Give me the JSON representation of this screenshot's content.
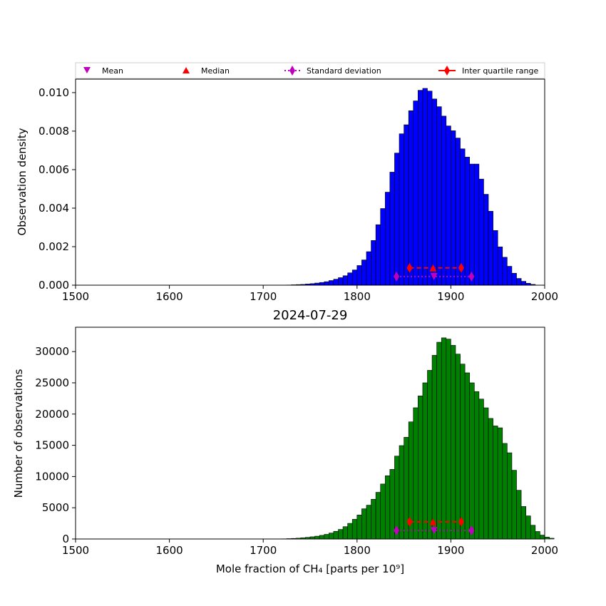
{
  "figure": {
    "title_bottom": "2024-07-29",
    "legend": {
      "placement": "top, above upper panel",
      "entries": [
        {
          "label": "Mean",
          "marker": "triangle-down",
          "color": "#bf00bf"
        },
        {
          "label": "Median",
          "marker": "triangle-up",
          "color": "#ff0000"
        },
        {
          "label": "Standard deviation",
          "marker": "diamond",
          "line": "dotted",
          "color": "#bf00bf"
        },
        {
          "label": "Inter quartile range",
          "marker": "diamond",
          "line": "solid",
          "color": "#ff0000"
        }
      ]
    },
    "colors": {
      "density": "#0000ff",
      "counts": "#008000",
      "mean": "#bf00bf",
      "median": "#ff0000",
      "stddev": "#bf00bf",
      "iqr": "#ff0000"
    }
  },
  "chart_data": [
    {
      "type": "bar",
      "panel": "top",
      "title": "",
      "xlabel": "",
      "ylabel": "Observation density",
      "xlim": [
        1500,
        2000
      ],
      "ylim": [
        0,
        0.0107
      ],
      "xticks": [
        "1500",
        "1600",
        "1700",
        "1800",
        "1900",
        "2000"
      ],
      "yticks": [
        "0.000",
        "0.002",
        "0.004",
        "0.006",
        "0.008",
        "0.010"
      ],
      "bin_start": 1725,
      "bin_width": 5,
      "values": [
        1e-05,
        2e-05,
        3e-05,
        4e-05,
        6e-05,
        8e-05,
        0.00011,
        0.00014,
        0.00018,
        0.00024,
        0.00031,
        0.00039,
        0.00049,
        0.00064,
        0.00079,
        0.00102,
        0.00131,
        0.00174,
        0.00232,
        0.00314,
        0.00398,
        0.00483,
        0.00587,
        0.00686,
        0.00786,
        0.00833,
        0.00906,
        0.00957,
        0.01012,
        0.01022,
        0.01008,
        0.00967,
        0.00927,
        0.00878,
        0.00827,
        0.00802,
        0.00764,
        0.00708,
        0.00665,
        0.00629,
        0.00629,
        0.00551,
        0.00472,
        0.00384,
        0.00284,
        0.00199,
        0.00145,
        0.00098,
        0.00062,
        0.00035,
        0.0002,
        0.0001,
        4e-05
      ],
      "markers": {
        "mean": {
          "x": 1882,
          "y": 0.00045
        },
        "median": {
          "x": 1881,
          "y": 0.0009
        },
        "stddev": {
          "x_from": 1842,
          "x_to": 1922,
          "y": 0.00045
        },
        "iqr": {
          "x_from": 1856,
          "x_to": 1911,
          "y": 0.0009
        }
      }
    },
    {
      "type": "bar",
      "panel": "bottom",
      "title": "2024-07-29",
      "xlabel": "Mole fraction of CH₄ [parts per 10⁹]",
      "ylabel": "Number of observations",
      "xlim": [
        1500,
        2000
      ],
      "ylim": [
        0,
        33900
      ],
      "xticks": [
        "1500",
        "1600",
        "1700",
        "1800",
        "1900",
        "2000"
      ],
      "yticks": [
        "0",
        "5000",
        "10000",
        "15000",
        "20000",
        "25000",
        "30000"
      ],
      "bin_start": 1720,
      "bin_width": 5,
      "values": [
        30,
        60,
        90,
        130,
        190,
        260,
        350,
        450,
        580,
        740,
        950,
        1230,
        1530,
        1970,
        2500,
        3150,
        3840,
        4830,
        5410,
        6360,
        7470,
        8800,
        10120,
        11140,
        13270,
        14950,
        16280,
        18750,
        21010,
        22910,
        25000,
        27000,
        29400,
        31500,
        32200,
        32000,
        31000,
        29600,
        28000,
        26600,
        25000,
        23600,
        22400,
        21000,
        19300,
        18100,
        17800,
        15300,
        13800,
        11000,
        7800,
        5200,
        3700,
        2200,
        1200,
        620,
        300,
        120
      ],
      "markers": {
        "mean": {
          "x": 1882,
          "y": 1350
        },
        "median": {
          "x": 1881,
          "y": 2750
        },
        "stddev": {
          "x_from": 1842,
          "x_to": 1922,
          "y": 1350
        },
        "iqr": {
          "x_from": 1856,
          "x_to": 1911,
          "y": 2750
        }
      }
    }
  ]
}
